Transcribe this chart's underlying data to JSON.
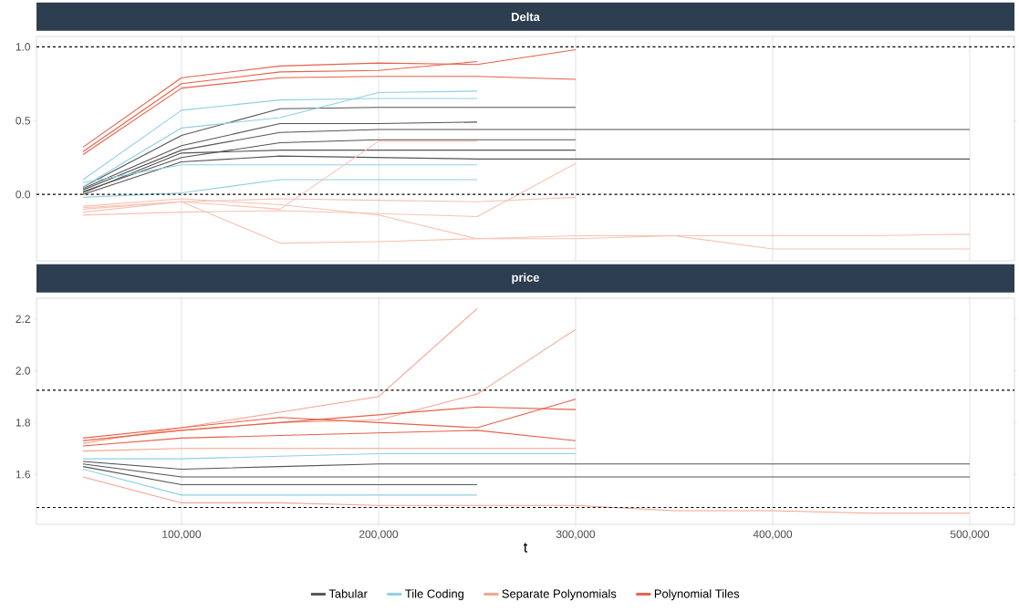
{
  "chart_data": [
    {
      "type": "line",
      "title": "Delta",
      "x": [
        50000,
        100000,
        150000,
        200000,
        250000,
        300000,
        350000,
        400000,
        450000,
        500000
      ],
      "xlim": [
        26400,
        522700
      ],
      "ylim": [
        -0.45,
        1.07
      ],
      "xticks": [
        {
          "value": 100000,
          "label": null
        },
        {
          "value": 200000,
          "label": null
        },
        {
          "value": 300000,
          "label": null
        },
        {
          "value": 400000,
          "label": null
        },
        {
          "value": 500000,
          "label": null
        }
      ],
      "yticks": [
        {
          "value": 0,
          "label": "0.0"
        },
        {
          "value": 0.5,
          "label": "0.5"
        },
        {
          "value": 1,
          "label": "1.0"
        }
      ],
      "tick_labels": "y",
      "grid": "x",
      "legend": false,
      "ref_lines": [
        {
          "axis": "y",
          "value": 1,
          "line_style": "dashed",
          "color": "#000000"
        },
        {
          "axis": "y",
          "value": 0,
          "line_style": "dashed",
          "color": "#000000"
        }
      ],
      "series": [
        {
          "color": "#555555",
          "values": [
            0.02,
            0.25,
            0.35,
            0.37,
            0.37,
            0.37,
            null,
            null,
            null,
            null
          ]
        },
        {
          "color": "#555555",
          "values": [
            0.04,
            0.33,
            0.48,
            0.48,
            0.49,
            null,
            null,
            null,
            null,
            null
          ]
        },
        {
          "color": "#555555",
          "values": [
            0.01,
            0.28,
            0.3,
            0.3,
            0.3,
            0.3,
            null,
            null,
            null,
            null
          ]
        },
        {
          "color": "#555555",
          "values": [
            0.03,
            0.3,
            0.42,
            0.44,
            0.44,
            0.44,
            0.44,
            0.44,
            0.44,
            0.44
          ]
        },
        {
          "color": "#555555",
          "values": [
            0.0,
            0.22,
            0.26,
            0.25,
            0.24,
            0.24,
            0.24,
            0.24,
            0.24,
            0.24
          ]
        },
        {
          "color": "#555555",
          "values": [
            0.05,
            0.4,
            0.58,
            0.59,
            0.59,
            0.59,
            null,
            null,
            null,
            null
          ]
        },
        {
          "color": "#8fd0e3",
          "values": [
            0.1,
            0.57,
            0.64,
            0.65,
            0.65,
            null,
            null,
            null,
            null,
            null
          ]
        },
        {
          "color": "#8fd0e3",
          "values": [
            0.05,
            0.45,
            0.52,
            0.69,
            0.7,
            null,
            null,
            null,
            null,
            null
          ]
        },
        {
          "color": "#8fd0e3",
          "values": [
            -0.02,
            0.01,
            0.1,
            0.1,
            0.1,
            null,
            null,
            null,
            null,
            null
          ]
        },
        {
          "color": "#8fd0e3",
          "values": [
            0.08,
            0.2,
            0.2,
            0.2,
            0.2,
            null,
            null,
            null,
            null,
            null
          ]
        },
        {
          "color": "#f7c2b3",
          "values": [
            -0.12,
            -0.05,
            -0.33,
            -0.32,
            -0.3,
            -0.3,
            -0.28,
            -0.28,
            -0.28,
            -0.27
          ]
        },
        {
          "color": "#f7c2b3",
          "values": [
            -0.08,
            -0.03,
            -0.07,
            -0.14,
            -0.3,
            -0.28,
            -0.28,
            -0.37,
            -0.37,
            -0.37
          ]
        },
        {
          "color": "#f7c2b3",
          "values": [
            -0.1,
            -0.05,
            -0.03,
            -0.04,
            -0.05,
            -0.02,
            null,
            null,
            null,
            null
          ]
        },
        {
          "color": "#f7c2b3",
          "values": [
            -0.09,
            -0.05,
            -0.1,
            0.36,
            0.36,
            null,
            null,
            null,
            null,
            null
          ]
        },
        {
          "color": "#f7c2b3",
          "values": [
            -0.14,
            -0.12,
            -0.11,
            -0.13,
            -0.15,
            0.21,
            null,
            null,
            null,
            null
          ]
        },
        {
          "color": "#e8604a",
          "values": [
            0.27,
            0.72,
            0.79,
            0.8,
            0.8,
            0.78,
            null,
            null,
            null,
            null
          ]
        },
        {
          "color": "#e8604a",
          "values": [
            0.32,
            0.79,
            0.87,
            0.89,
            0.88,
            0.98,
            null,
            null,
            null,
            null
          ]
        },
        {
          "color": "#e8604a",
          "values": [
            0.29,
            0.75,
            0.83,
            0.84,
            0.9,
            null,
            null,
            null,
            null,
            null
          ]
        }
      ]
    },
    {
      "type": "line",
      "title": "price",
      "xlabel": "t",
      "x": [
        50000,
        100000,
        150000,
        200000,
        250000,
        300000,
        350000,
        400000,
        450000,
        500000
      ],
      "xlim": [
        26400,
        522700
      ],
      "ylim": [
        1.407,
        2.28
      ],
      "xticks": [
        {
          "value": 100000,
          "label": "100,000"
        },
        {
          "value": 200000,
          "label": "200,000"
        },
        {
          "value": 300000,
          "label": "300,000"
        },
        {
          "value": 400000,
          "label": "400,000"
        },
        {
          "value": 500000,
          "label": "500,000"
        }
      ],
      "yticks": [
        {
          "value": 1.6,
          "label": "1.6"
        },
        {
          "value": 1.8,
          "label": "1.8"
        },
        {
          "value": 2.0,
          "label": "2.0"
        },
        {
          "value": 2.2,
          "label": "2.2"
        }
      ],
      "grid": "x",
      "legend": "bottom",
      "ref_lines": [
        {
          "axis": "y",
          "value": 1.925,
          "line_style": "dashed",
          "color": "#000000"
        },
        {
          "axis": "y",
          "value": 1.472,
          "line_style": "dashed",
          "color": "#000000"
        }
      ],
      "series": [
        {
          "name": "Tabular",
          "color": "#555555",
          "values": [
            1.65,
            1.62,
            1.63,
            1.64,
            1.64,
            1.64,
            1.64,
            1.64,
            1.64,
            1.64
          ]
        },
        {
          "color": "#555555",
          "values": [
            1.64,
            1.59,
            1.59,
            1.59,
            1.59,
            1.59,
            1.59,
            1.59,
            1.59,
            1.59
          ]
        },
        {
          "color": "#555555",
          "values": [
            1.63,
            1.56,
            1.56,
            1.56,
            1.56,
            null,
            null,
            null,
            null,
            null
          ]
        },
        {
          "name": "Tile Coding",
          "color": "#8fd0e3",
          "values": [
            1.66,
            1.66,
            1.67,
            1.68,
            1.68,
            1.68,
            null,
            null,
            null,
            null
          ]
        },
        {
          "color": "#8fd0e3",
          "values": [
            1.62,
            1.52,
            1.52,
            1.52,
            1.52,
            null,
            null,
            null,
            null,
            null
          ]
        },
        {
          "name": "Separate Polynomials",
          "color": "#f4a48f",
          "values": [
            1.73,
            1.77,
            1.8,
            1.81,
            1.91,
            2.16,
            null,
            null,
            null,
            null
          ]
        },
        {
          "color": "#f4a48f",
          "values": [
            1.72,
            1.78,
            1.84,
            1.9,
            2.24,
            null,
            null,
            null,
            null,
            null
          ]
        },
        {
          "color": "#f4a48f",
          "values": [
            1.59,
            1.49,
            1.49,
            1.48,
            1.48,
            1.48,
            1.46,
            1.46,
            1.45,
            1.45
          ]
        },
        {
          "color": "#f4a48f",
          "values": [
            1.69,
            1.7,
            1.7,
            1.7,
            1.7,
            1.7,
            null,
            null,
            null,
            null
          ]
        },
        {
          "name": "Polynomial Tiles",
          "color": "#e8604a",
          "values": [
            1.71,
            1.74,
            1.75,
            1.76,
            1.77,
            1.73,
            null,
            null,
            null,
            null
          ]
        },
        {
          "color": "#e8604a",
          "values": [
            1.74,
            1.78,
            1.82,
            1.8,
            1.78,
            1.89,
            null,
            null,
            null,
            null
          ]
        },
        {
          "color": "#e8604a",
          "values": [
            1.73,
            1.77,
            1.8,
            1.83,
            1.86,
            1.85,
            null,
            null,
            null,
            null
          ]
        }
      ]
    }
  ]
}
